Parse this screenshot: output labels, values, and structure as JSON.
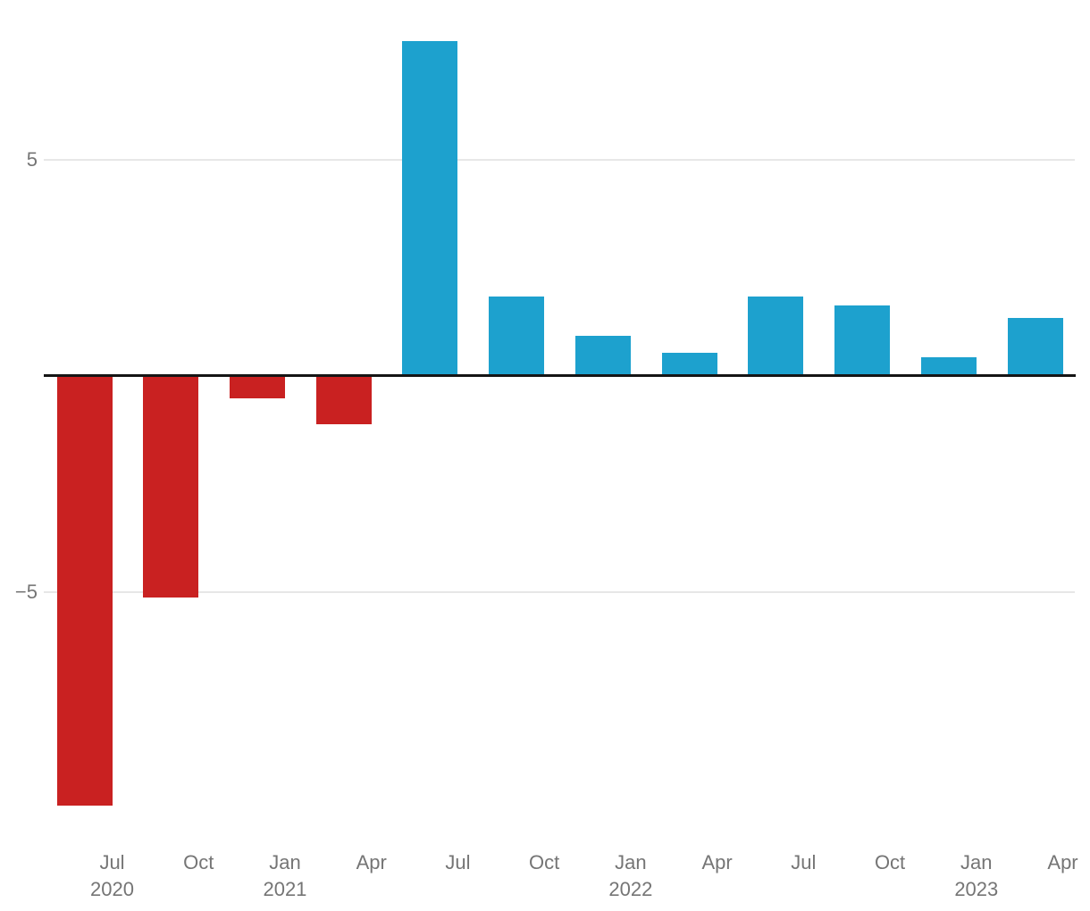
{
  "chart_data": {
    "type": "bar",
    "title": "",
    "xlabel": "",
    "ylabel": "",
    "categories": [
      "Jul 2020",
      "Oct 2020",
      "Jan 2021",
      "Apr 2021",
      "Jul 2021",
      "Oct 2021",
      "Jan 2022",
      "Apr 2022",
      "Jul 2022",
      "Oct 2022",
      "Jan 2023",
      "Apr 2023"
    ],
    "values": [
      -9.9,
      -5.1,
      -0.5,
      -1.1,
      7.7,
      1.8,
      0.9,
      0.5,
      1.8,
      1.6,
      0.4,
      1.3
    ],
    "x_tick_labels": [
      [
        "Jul",
        "2020"
      ],
      [
        "Oct"
      ],
      [
        "Jan",
        "2021"
      ],
      [
        "Apr"
      ],
      [
        "Jul"
      ],
      [
        "Oct"
      ],
      [
        "Jan",
        "2022"
      ],
      [
        "Apr"
      ],
      [
        "Jul"
      ],
      [
        "Oct"
      ],
      [
        "Jan",
        "2023"
      ],
      [
        "Apr"
      ]
    ],
    "y_ticks": [
      {
        "value": 5,
        "label": "5"
      },
      {
        "value": -5,
        "label": "−5"
      }
    ],
    "ylim": [
      -10.4,
      7.9
    ],
    "grid": "horizontal-only",
    "legend": "none",
    "colors": {
      "positive": "#1da1ce",
      "negative": "#c92121",
      "grid": "#e7e7e7",
      "zero_line": "#151515",
      "axis_labels": "#757575",
      "background": "#ffffff"
    }
  }
}
